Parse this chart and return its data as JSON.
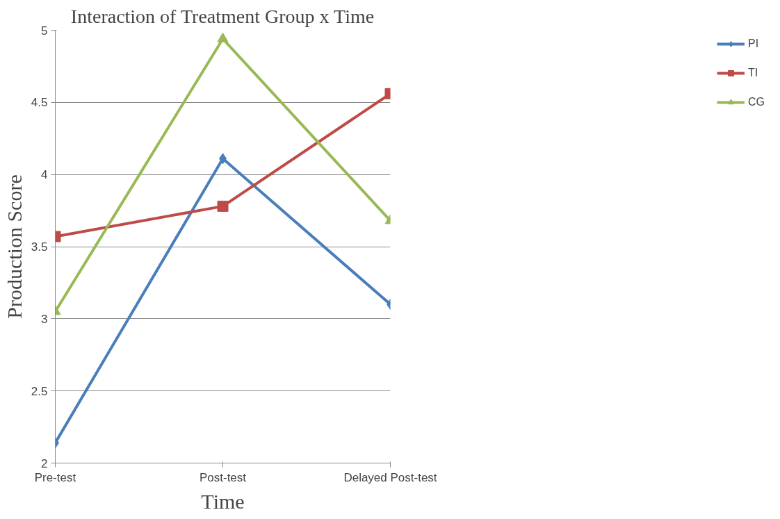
{
  "chart_data": {
    "type": "line",
    "title": "Interaction of Treatment Group x Time",
    "xlabel": "Time",
    "ylabel": "Production Score",
    "categories": [
      "Pre-test",
      "Post-test",
      "Delayed Post-test"
    ],
    "series": [
      {
        "name": "PI",
        "color": "#4a7ebb",
        "values": [
          2.14,
          4.11,
          3.1
        ],
        "marker": "diamond"
      },
      {
        "name": "TI",
        "color": "#be4b48",
        "values": [
          3.57,
          3.78,
          4.56
        ],
        "marker": "square"
      },
      {
        "name": "CG",
        "color": "#98b954",
        "values": [
          3.05,
          4.94,
          3.68
        ],
        "marker": "triangle"
      }
    ],
    "ylim": [
      2,
      5
    ],
    "yticks": [
      2,
      2.5,
      3,
      3.5,
      4,
      4.5,
      5
    ],
    "grid": "y",
    "legend": "right",
    "line_style": "solid"
  }
}
